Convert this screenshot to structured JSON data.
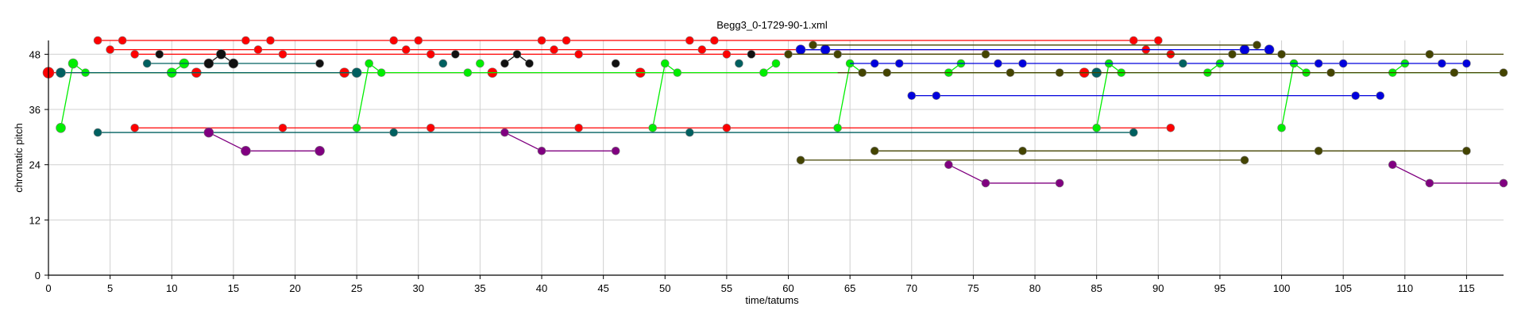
{
  "chart_data": {
    "type": "scatter",
    "title": "Begg3_0-1729-90-1.xml",
    "xlabel": "time/tatums",
    "ylabel": "chromatic pitch",
    "xlim": [
      0,
      118
    ],
    "ylim": [
      0,
      51
    ],
    "x_ticks": [
      0,
      5,
      10,
      15,
      20,
      25,
      30,
      35,
      40,
      45,
      50,
      55,
      60,
      65,
      70,
      75,
      80,
      85,
      90,
      95,
      100,
      105,
      110,
      115
    ],
    "y_ticks": [
      0,
      12,
      24,
      36,
      48
    ],
    "grid": true,
    "legend": "none",
    "series": [
      {
        "color": "#ff0000",
        "segments": [
          [
            [
              0,
              44
            ],
            [
              84,
              44
            ]
          ],
          [
            [
              4,
              51
            ],
            [
              6,
              51
            ],
            [
              16,
              51
            ],
            [
              18,
              51
            ],
            [
              28,
              51
            ],
            [
              30,
              51
            ],
            [
              40,
              51
            ],
            [
              42,
              51
            ],
            [
              52,
              51
            ],
            [
              54,
              51
            ],
            [
              88,
              51
            ],
            [
              90,
              51
            ]
          ],
          [
            [
              5,
              49
            ],
            [
              17,
              49
            ],
            [
              29,
              49
            ],
            [
              41,
              49
            ],
            [
              53,
              49
            ],
            [
              89,
              49
            ]
          ],
          [
            [
              7,
              48
            ],
            [
              19,
              48
            ],
            [
              31,
              48
            ],
            [
              43,
              48
            ],
            [
              55,
              48
            ],
            [
              91,
              48
            ]
          ],
          [
            [
              7,
              32
            ],
            [
              19,
              32
            ],
            [
              31,
              32
            ],
            [
              43,
              32
            ],
            [
              55,
              32
            ],
            [
              91,
              32
            ]
          ]
        ],
        "points": [
          [
            0,
            44,
            7
          ],
          [
            12,
            44,
            6
          ],
          [
            24,
            44,
            6
          ],
          [
            36,
            44,
            6
          ],
          [
            48,
            44,
            6
          ],
          [
            84,
            44,
            6
          ],
          [
            4,
            51,
            5
          ],
          [
            6,
            51,
            5
          ],
          [
            16,
            51,
            5
          ],
          [
            18,
            51,
            5
          ],
          [
            28,
            51,
            5
          ],
          [
            30,
            51,
            5
          ],
          [
            40,
            51,
            5
          ],
          [
            42,
            51,
            5
          ],
          [
            52,
            51,
            5
          ],
          [
            54,
            51,
            5
          ],
          [
            88,
            51,
            5
          ],
          [
            90,
            51,
            5
          ],
          [
            5,
            49,
            5
          ],
          [
            17,
            49,
            5
          ],
          [
            29,
            49,
            5
          ],
          [
            41,
            49,
            5
          ],
          [
            53,
            49,
            5
          ],
          [
            89,
            49,
            5
          ],
          [
            7,
            48,
            5
          ],
          [
            19,
            48,
            5
          ],
          [
            31,
            48,
            5
          ],
          [
            43,
            48,
            5
          ],
          [
            55,
            48,
            5
          ],
          [
            91,
            48,
            5
          ],
          [
            7,
            32,
            5
          ],
          [
            19,
            32,
            5
          ],
          [
            31,
            32,
            5
          ],
          [
            43,
            32,
            5
          ],
          [
            55,
            32,
            5
          ],
          [
            91,
            32,
            5
          ]
        ]
      },
      {
        "color": "#00ee00",
        "segments": [
          [
            [
              1,
              32
            ],
            [
              2,
              46
            ],
            [
              3,
              44
            ]
          ],
          [
            [
              10,
              44
            ],
            [
              11,
              46
            ]
          ],
          [
            [
              25,
              32
            ],
            [
              26,
              46
            ],
            [
              27,
              44
            ]
          ],
          [
            [
              49,
              32
            ],
            [
              50,
              46
            ],
            [
              51,
              44
            ]
          ],
          [
            [
              64,
              32
            ],
            [
              65,
              46
            ],
            [
              66,
              44
            ]
          ],
          [
            [
              85,
              32
            ],
            [
              86,
              46
            ],
            [
              87,
              44
            ]
          ],
          [
            [
              100,
              32
            ],
            [
              101,
              46
            ],
            [
              102,
              44
            ]
          ],
          [
            [
              58,
              44
            ],
            [
              59,
              46
            ]
          ],
          [
            [
              73,
              44
            ],
            [
              74,
              46
            ]
          ],
          [
            [
              94,
              44
            ],
            [
              95,
              46
            ]
          ],
          [
            [
              109,
              44
            ],
            [
              110,
              46
            ]
          ],
          [
            [
              3,
              44
            ],
            [
              118,
              44
            ]
          ]
        ],
        "points": [
          [
            1,
            32,
            6
          ],
          [
            2,
            46,
            6
          ],
          [
            3,
            44,
            5
          ],
          [
            10,
            44,
            6
          ],
          [
            11,
            46,
            6
          ],
          [
            25,
            32,
            5
          ],
          [
            26,
            46,
            5
          ],
          [
            27,
            44,
            5
          ],
          [
            34,
            44,
            5
          ],
          [
            35,
            46,
            5
          ],
          [
            49,
            32,
            5
          ],
          [
            50,
            46,
            5
          ],
          [
            51,
            44,
            5
          ],
          [
            58,
            44,
            5
          ],
          [
            59,
            46,
            5
          ],
          [
            64,
            32,
            5
          ],
          [
            65,
            46,
            5
          ],
          [
            66,
            44,
            5
          ],
          [
            73,
            44,
            5
          ],
          [
            74,
            46,
            5
          ],
          [
            85,
            32,
            5
          ],
          [
            86,
            46,
            5
          ],
          [
            87,
            44,
            5
          ],
          [
            94,
            44,
            5
          ],
          [
            95,
            46,
            5
          ],
          [
            100,
            32,
            5
          ],
          [
            101,
            46,
            5
          ],
          [
            102,
            44,
            5
          ],
          [
            109,
            44,
            5
          ],
          [
            110,
            46,
            5
          ]
        ]
      },
      {
        "color": "#0000dd",
        "segments": [
          [
            [
              61,
              49
            ],
            [
              99,
              49
            ]
          ],
          [
            [
              65,
              46
            ],
            [
              115,
              46
            ]
          ],
          [
            [
              70,
              39
            ],
            [
              108,
              39
            ]
          ],
          [
            [
              61,
              49
            ],
            [
              63,
              49
            ]
          ],
          [
            [
              97,
              49
            ],
            [
              99,
              49
            ]
          ]
        ],
        "points": [
          [
            61,
            49,
            6
          ],
          [
            63,
            49,
            6
          ],
          [
            97,
            49,
            6
          ],
          [
            99,
            49,
            6
          ],
          [
            67,
            46,
            5
          ],
          [
            69,
            46,
            5
          ],
          [
            77,
            46,
            5
          ],
          [
            79,
            46,
            5
          ],
          [
            103,
            46,
            5
          ],
          [
            105,
            46,
            5
          ],
          [
            113,
            46,
            5
          ],
          [
            115,
            46,
            5
          ],
          [
            70,
            39,
            5
          ],
          [
            72,
            39,
            5
          ],
          [
            106,
            39,
            5
          ],
          [
            108,
            39,
            5
          ]
        ]
      },
      {
        "color": "#006060",
        "segments": [
          [
            [
              8,
              46
            ],
            [
              22,
              46
            ]
          ],
          [
            [
              4,
              31
            ],
            [
              88,
              31
            ]
          ],
          [
            [
              1,
              44
            ],
            [
              25,
              44
            ]
          ]
        ],
        "points": [
          [
            1,
            44,
            6
          ],
          [
            8,
            46,
            5
          ],
          [
            22,
            46,
            5
          ],
          [
            25,
            44,
            6
          ],
          [
            32,
            46,
            5
          ],
          [
            56,
            46,
            5
          ],
          [
            85,
            44,
            6
          ],
          [
            92,
            46,
            5
          ],
          [
            4,
            31,
            5
          ],
          [
            28,
            31,
            5
          ],
          [
            52,
            31,
            5
          ],
          [
            88,
            31,
            5
          ]
        ]
      },
      {
        "color": "#444400",
        "segments": [
          [
            [
              60,
              48
            ],
            [
              118,
              48
            ]
          ],
          [
            [
              60,
              48
            ],
            [
              96,
              48
            ]
          ],
          [
            [
              62,
              50
            ],
            [
              98,
              50
            ]
          ],
          [
            [
              67,
              27
            ],
            [
              115,
              27
            ]
          ],
          [
            [
              61,
              25
            ],
            [
              97,
              25
            ]
          ],
          [
            [
              64,
              44
            ],
            [
              118,
              44
            ]
          ]
        ],
        "points": [
          [
            60,
            48,
            5
          ],
          [
            62,
            50,
            5
          ],
          [
            64,
            48,
            5
          ],
          [
            66,
            44,
            5
          ],
          [
            68,
            44,
            5
          ],
          [
            76,
            48,
            5
          ],
          [
            78,
            44,
            5
          ],
          [
            82,
            44,
            5
          ],
          [
            96,
            48,
            5
          ],
          [
            98,
            50,
            5
          ],
          [
            100,
            48,
            5
          ],
          [
            104,
            44,
            5
          ],
          [
            112,
            48,
            5
          ],
          [
            114,
            44,
            5
          ],
          [
            118,
            44,
            5
          ],
          [
            67,
            27,
            5
          ],
          [
            79,
            27,
            5
          ],
          [
            103,
            27,
            5
          ],
          [
            115,
            27,
            5
          ],
          [
            61,
            25,
            5
          ],
          [
            97,
            25,
            5
          ]
        ]
      },
      {
        "color": "#111111",
        "segments": [
          [
            [
              13,
              46
            ],
            [
              14,
              48
            ],
            [
              15,
              46
            ]
          ],
          [
            [
              37,
              46
            ],
            [
              38,
              48
            ],
            [
              39,
              46
            ]
          ]
        ],
        "points": [
          [
            9,
            48,
            5
          ],
          [
            13,
            46,
            6
          ],
          [
            14,
            48,
            6
          ],
          [
            15,
            46,
            6
          ],
          [
            22,
            46,
            5
          ],
          [
            33,
            48,
            5
          ],
          [
            37,
            46,
            5
          ],
          [
            38,
            48,
            5
          ],
          [
            39,
            46,
            5
          ],
          [
            46,
            46,
            5
          ],
          [
            57,
            48,
            5
          ]
        ]
      },
      {
        "color": "#800080",
        "segments": [
          [
            [
              13,
              31
            ],
            [
              16,
              27
            ],
            [
              22,
              27
            ]
          ],
          [
            [
              37,
              31
            ],
            [
              40,
              27
            ],
            [
              46,
              27
            ]
          ],
          [
            [
              73,
              24
            ],
            [
              76,
              20
            ],
            [
              82,
              20
            ]
          ],
          [
            [
              109,
              24
            ],
            [
              112,
              20
            ],
            [
              118,
              20
            ]
          ]
        ],
        "points": [
          [
            13,
            31,
            6
          ],
          [
            16,
            27,
            6
          ],
          [
            22,
            27,
            6
          ],
          [
            37,
            31,
            5
          ],
          [
            40,
            27,
            5
          ],
          [
            46,
            27,
            5
          ],
          [
            73,
            24,
            5
          ],
          [
            76,
            20,
            5
          ],
          [
            82,
            20,
            5
          ],
          [
            109,
            24,
            5
          ],
          [
            112,
            20,
            5
          ],
          [
            118,
            20,
            5
          ]
        ]
      }
    ]
  }
}
